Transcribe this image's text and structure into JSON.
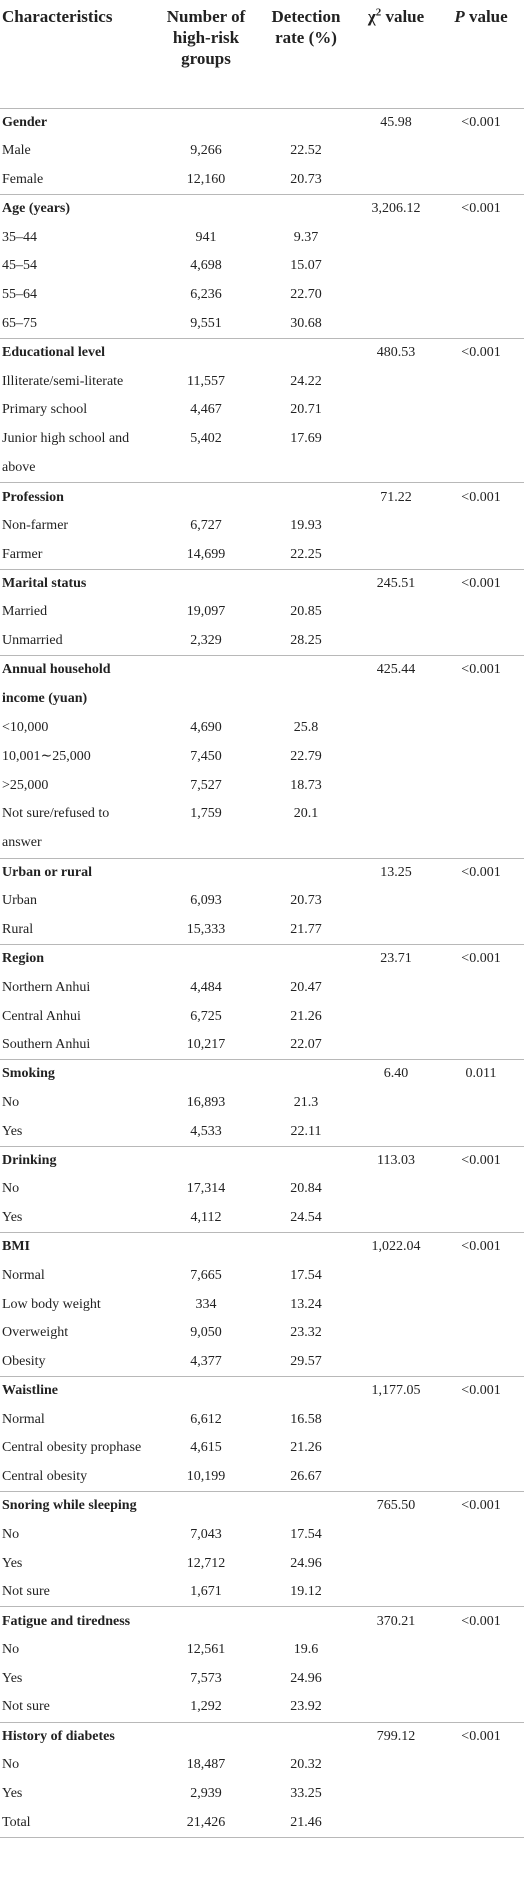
{
  "headers": {
    "characteristics": "Characteristics",
    "number": "Number of high-risk groups",
    "rate": "Detection rate (%)",
    "chi_prefix": "χ",
    "chi_sup": "2",
    "chi_suffix": " value",
    "p_italic": "P",
    "p_suffix": " value"
  },
  "groups": [
    {
      "label": "Gender",
      "chi": "45.98",
      "p": "<0.001",
      "rows": [
        {
          "label": "Male",
          "n": "9,266",
          "rate": "22.52"
        },
        {
          "label": "Female",
          "n": "12,160",
          "rate": "20.73"
        }
      ]
    },
    {
      "label": "Age (years)",
      "chi": "3,206.12",
      "p": "<0.001",
      "rows": [
        {
          "label": "35–44",
          "n": "941",
          "rate": "9.37"
        },
        {
          "label": "45–54",
          "n": "4,698",
          "rate": "15.07"
        },
        {
          "label": "55–64",
          "n": "6,236",
          "rate": "22.70"
        },
        {
          "label": "65–75",
          "n": "9,551",
          "rate": "30.68"
        }
      ]
    },
    {
      "label": "Educational level",
      "chi": "480.53",
      "p": "<0.001",
      "rows": [
        {
          "label": "Illiterate/semi-literate",
          "n": "11,557",
          "rate": "24.22"
        },
        {
          "label": "Primary school",
          "n": "4,467",
          "rate": "20.71"
        },
        {
          "label": "Junior high school and above",
          "n": "5,402",
          "rate": "17.69",
          "wrap": true
        }
      ]
    },
    {
      "label": "Profession",
      "chi": "71.22",
      "p": "<0.001",
      "rows": [
        {
          "label": "Non-farmer",
          "n": "6,727",
          "rate": "19.93"
        },
        {
          "label": "Farmer",
          "n": "14,699",
          "rate": "22.25"
        }
      ]
    },
    {
      "label": "Marital status",
      "chi": "245.51",
      "p": "<0.001",
      "rows": [
        {
          "label": "Married",
          "n": "19,097",
          "rate": "20.85"
        },
        {
          "label": "Unmarried",
          "n": "2,329",
          "rate": "28.25"
        }
      ]
    },
    {
      "label": "Annual household income (yuan)",
      "chi": "425.44",
      "p": "<0.001",
      "wrap": true,
      "rows": [
        {
          "label": "<10,000",
          "n": "4,690",
          "rate": "25.8"
        },
        {
          "label": "10,001∼25,000",
          "n": "7,450",
          "rate": "22.79"
        },
        {
          "label": ">25,000",
          "n": "7,527",
          "rate": "18.73"
        },
        {
          "label": "Not sure/refused to answer",
          "n": "1,759",
          "rate": "20.1",
          "wrap": true
        }
      ]
    },
    {
      "label": "Urban or rural",
      "chi": "13.25",
      "p": "<0.001",
      "rows": [
        {
          "label": "Urban",
          "n": "6,093",
          "rate": "20.73"
        },
        {
          "label": "Rural",
          "n": "15,333",
          "rate": "21.77"
        }
      ]
    },
    {
      "label": "Region",
      "chi": "23.71",
      "p": "<0.001",
      "rows": [
        {
          "label": "Northern Anhui",
          "n": "4,484",
          "rate": "20.47"
        },
        {
          "label": "Central Anhui",
          "n": "6,725",
          "rate": "21.26"
        },
        {
          "label": "Southern Anhui",
          "n": "10,217",
          "rate": "22.07"
        }
      ]
    },
    {
      "label": "Smoking",
      "chi": "6.40",
      "p": "0.011",
      "rows": [
        {
          "label": "No",
          "n": "16,893",
          "rate": "21.3"
        },
        {
          "label": "Yes",
          "n": "4,533",
          "rate": "22.11"
        }
      ]
    },
    {
      "label": "Drinking",
      "chi": "113.03",
      "p": "<0.001",
      "rows": [
        {
          "label": "No",
          "n": "17,314",
          "rate": "20.84"
        },
        {
          "label": "Yes",
          "n": "4,112",
          "rate": "24.54"
        }
      ]
    },
    {
      "label": "BMI",
      "chi": "1,022.04",
      "p": "<0.001",
      "rows": [
        {
          "label": "Normal",
          "n": "7,665",
          "rate": "17.54"
        },
        {
          "label": "Low body weight",
          "n": "334",
          "rate": "13.24"
        },
        {
          "label": "Overweight",
          "n": "9,050",
          "rate": "23.32"
        },
        {
          "label": "Obesity",
          "n": "4,377",
          "rate": "29.57"
        }
      ]
    },
    {
      "label": "Waistline",
      "chi": "1,177.05",
      "p": "<0.001",
      "rows": [
        {
          "label": "Normal",
          "n": "6,612",
          "rate": "16.58"
        },
        {
          "label": "Central obesity prophase",
          "n": "4,615",
          "rate": "21.26",
          "wrap": true
        },
        {
          "label": "Central obesity",
          "n": "10,199",
          "rate": "26.67"
        }
      ]
    },
    {
      "label": "Snoring while sleeping",
      "chi": "765.50",
      "p": "<0.001",
      "rows": [
        {
          "label": "No",
          "n": "7,043",
          "rate": "17.54"
        },
        {
          "label": "Yes",
          "n": "12,712",
          "rate": "24.96"
        },
        {
          "label": "Not sure",
          "n": "1,671",
          "rate": "19.12"
        }
      ]
    },
    {
      "label": "Fatigue and tiredness",
      "chi": "370.21",
      "p": "<0.001",
      "rows": [
        {
          "label": "No",
          "n": "12,561",
          "rate": "19.6"
        },
        {
          "label": "Yes",
          "n": "7,573",
          "rate": "24.96"
        },
        {
          "label": "Not sure",
          "n": "1,292",
          "rate": "23.92"
        }
      ]
    },
    {
      "label": "History of diabetes",
      "chi": "799.12",
      "p": "<0.001",
      "rows": [
        {
          "label": "No",
          "n": "18,487",
          "rate": "20.32"
        },
        {
          "label": "Yes",
          "n": "2,939",
          "rate": "33.25"
        }
      ]
    }
  ],
  "total": {
    "label": "Total",
    "n": "21,426",
    "rate": "21.46"
  }
}
